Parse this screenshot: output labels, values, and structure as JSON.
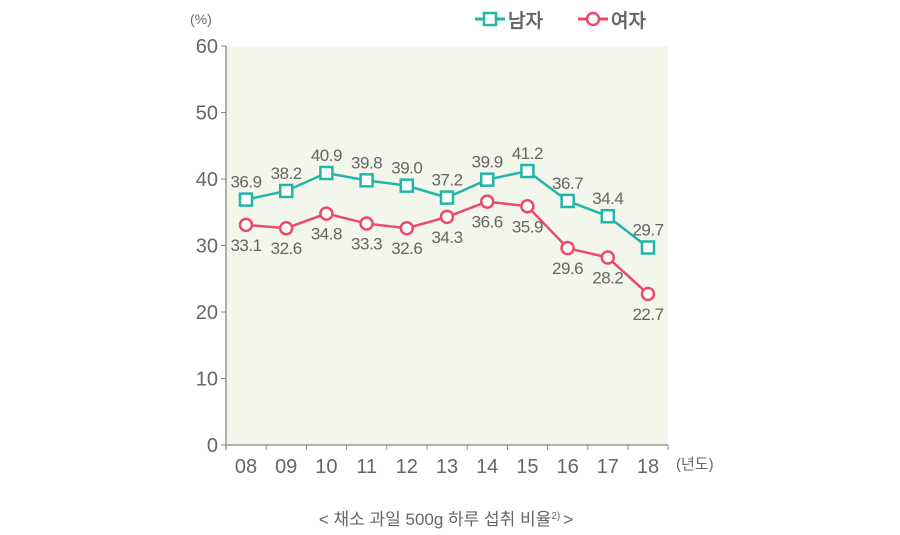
{
  "chart_data": {
    "type": "line",
    "title": "< 채소 과일 500g 하루 섭취 비율",
    "title_sup": "2)",
    "title_end": ">",
    "ylabel": "(%)",
    "xlabel": "(년도)",
    "categories": [
      "08",
      "09",
      "10",
      "11",
      "12",
      "13",
      "14",
      "15",
      "16",
      "17",
      "18"
    ],
    "ylim": [
      0,
      60
    ],
    "yticks": [
      "0",
      "10",
      "20",
      "30",
      "40",
      "50",
      "60"
    ],
    "legend_position": "top-right",
    "series": [
      {
        "name": "남자",
        "color": "#22b5a8",
        "marker": "square",
        "values": [
          36.9,
          38.2,
          40.9,
          39.8,
          39.0,
          37.2,
          39.9,
          41.2,
          36.7,
          34.4,
          29.7
        ],
        "labels": [
          "36.9",
          "38.2",
          "40.9",
          "39.8",
          "39.0",
          "37.2",
          "39.9",
          "41.2",
          "36.7",
          "34.4",
          "29.7"
        ]
      },
      {
        "name": "여자",
        "color": "#ec4a6c",
        "marker": "circle",
        "values": [
          33.1,
          32.6,
          34.8,
          33.3,
          32.6,
          34.3,
          36.6,
          35.9,
          29.6,
          28.2,
          22.7
        ],
        "labels": [
          "33.1",
          "32.6",
          "34.8",
          "33.3",
          "32.6",
          "34.3",
          "36.6",
          "35.9",
          "29.6",
          "28.2",
          "22.7"
        ]
      }
    ],
    "plot_background": "#f3f6ea"
  }
}
